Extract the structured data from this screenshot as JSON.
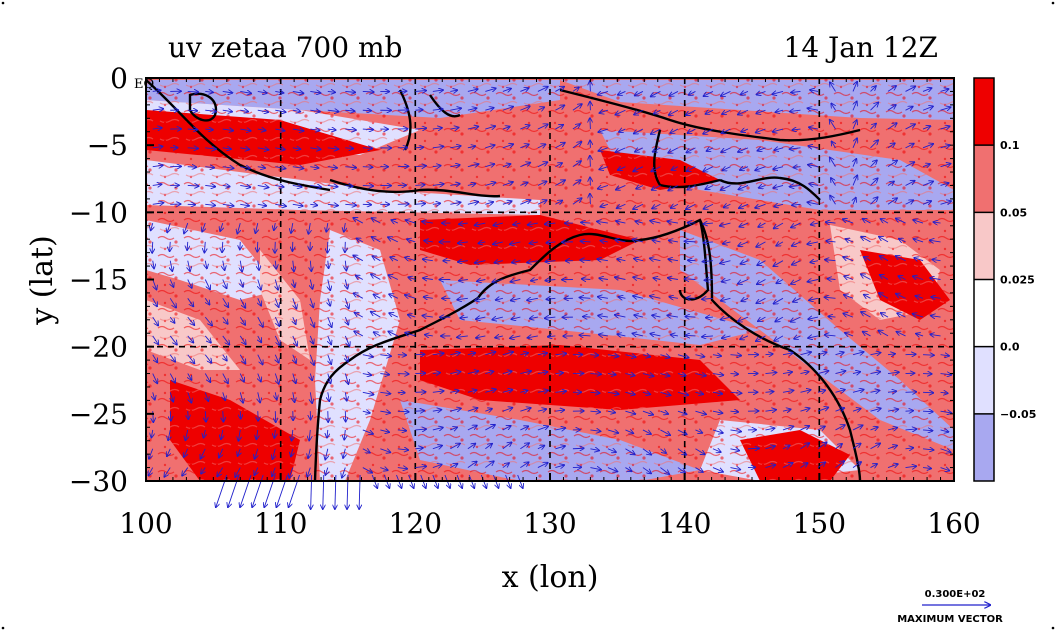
{
  "chart_data": {
    "type": "heatmap",
    "title_left": "uv zetaa 700 mb",
    "title_right": "14 Jan 12Z",
    "xlabel": "x (lon)",
    "ylabel": "y (lat)",
    "xlim": [
      100,
      160
    ],
    "ylim": [
      -30,
      0
    ],
    "x_ticks": [
      100,
      110,
      120,
      130,
      140,
      150,
      160
    ],
    "y_ticks": [
      0,
      -5,
      -10,
      -15,
      -20,
      -25,
      -30
    ],
    "x_tick_labels": [
      "100",
      "110",
      "120",
      "130",
      "140",
      "150",
      "160"
    ],
    "y_tick_labels": [
      "0",
      "−5",
      "−10",
      "−15",
      "−20",
      "−25",
      "−30"
    ],
    "eq_label": "EQ",
    "grid": true,
    "colorbar": {
      "labels": [
        "0.1",
        "0.05",
        "0.025",
        "0.0",
        "−0.05"
      ],
      "colors": [
        "#ee0000",
        "#f07070",
        "#f8c8c8",
        "#ffffff",
        "#e0e0ff",
        "#a8a8f0"
      ]
    },
    "vector_legend": {
      "value": "0.300E+02",
      "label": "MAXIMUM VECTOR"
    }
  }
}
